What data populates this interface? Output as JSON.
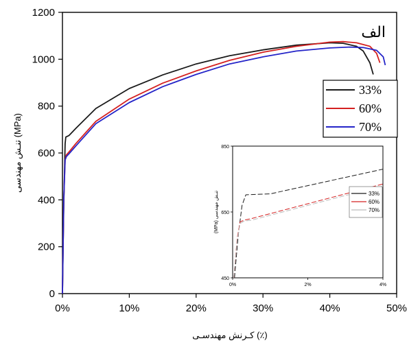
{
  "colors": {
    "background": "#ffffff",
    "axis": "#000000",
    "series_33": "#1a1a1a",
    "series_60": "#d42020",
    "series_70": "#2424c8",
    "inset_series_70": "#bbbbbb"
  },
  "chart_data": [
    {
      "type": "line",
      "panel_label": "الف",
      "xlabel": "کـرنش مهندسـی (٪)",
      "ylabel": "تنـش مهندسی (MPa)",
      "xlim": [
        0,
        50
      ],
      "ylim": [
        0,
        1200
      ],
      "x_ticks": [
        0,
        10,
        20,
        30,
        40,
        50
      ],
      "x_tick_labels": [
        "0%",
        "10%",
        "20%",
        "30%",
        "40%",
        "50%"
      ],
      "y_ticks": [
        0,
        200,
        400,
        600,
        800,
        1000,
        1200
      ],
      "y_tick_labels": [
        "0",
        "200",
        "400",
        "600",
        "800",
        "1000",
        "1200"
      ],
      "grid": false,
      "legend_position": "right",
      "series": [
        {
          "name": "33%",
          "x": [
            0,
            0.2,
            0.4,
            0.5,
            1,
            2,
            5,
            10,
            15,
            20,
            25,
            30,
            35,
            40,
            42,
            44,
            45,
            46,
            46.5
          ],
          "y": [
            0,
            380,
            640,
            668,
            675,
            705,
            790,
            875,
            933,
            980,
            1015,
            1040,
            1060,
            1070,
            1068,
            1055,
            1035,
            985,
            935
          ]
        },
        {
          "name": "60%",
          "x": [
            0,
            0.2,
            0.4,
            0.6,
            1,
            2,
            5,
            10,
            15,
            20,
            25,
            30,
            35,
            40,
            42,
            44,
            46,
            47,
            47.5
          ],
          "y": [
            0,
            400,
            572,
            592,
            605,
            640,
            735,
            830,
            898,
            950,
            995,
            1030,
            1055,
            1073,
            1075,
            1070,
            1055,
            1025,
            985
          ]
        },
        {
          "name": "70%",
          "x": [
            0,
            0.2,
            0.4,
            0.6,
            1,
            2,
            5,
            10,
            15,
            20,
            25,
            30,
            35,
            40,
            43,
            45,
            47,
            48,
            48.3
          ],
          "y": [
            0,
            400,
            570,
            585,
            597,
            630,
            725,
            815,
            883,
            935,
            980,
            1010,
            1035,
            1048,
            1052,
            1050,
            1038,
            1010,
            975
          ]
        }
      ]
    },
    {
      "type": "line",
      "ylabel": "(MPa) تنـش مهندسی",
      "xlim": [
        0,
        4
      ],
      "ylim": [
        450,
        850
      ],
      "x_ticks": [
        0,
        2,
        4
      ],
      "x_tick_labels": [
        "0%",
        "2%",
        "4%"
      ],
      "y_ticks": [
        450,
        650,
        850
      ],
      "y_tick_labels": [
        "450",
        "650",
        "850"
      ],
      "legend_position": "right",
      "series": [
        {
          "name": "33%",
          "x": [
            0.05,
            0.15,
            0.25,
            0.35,
            0.5,
            1,
            2,
            3,
            4
          ],
          "y": [
            450,
            580,
            670,
            702,
            703,
            705,
            730,
            755,
            780
          ]
        },
        {
          "name": "60%",
          "x": [
            0.03,
            0.12,
            0.2,
            0.3,
            0.5,
            1,
            2,
            3,
            4
          ],
          "y": [
            450,
            570,
            620,
            625,
            630,
            645,
            675,
            705,
            735
          ]
        },
        {
          "name": "70%",
          "x": [
            0.03,
            0.12,
            0.2,
            0.3,
            0.5,
            1,
            2,
            3,
            4
          ],
          "y": [
            450,
            565,
            615,
            622,
            625,
            640,
            670,
            700,
            728
          ]
        }
      ]
    }
  ]
}
